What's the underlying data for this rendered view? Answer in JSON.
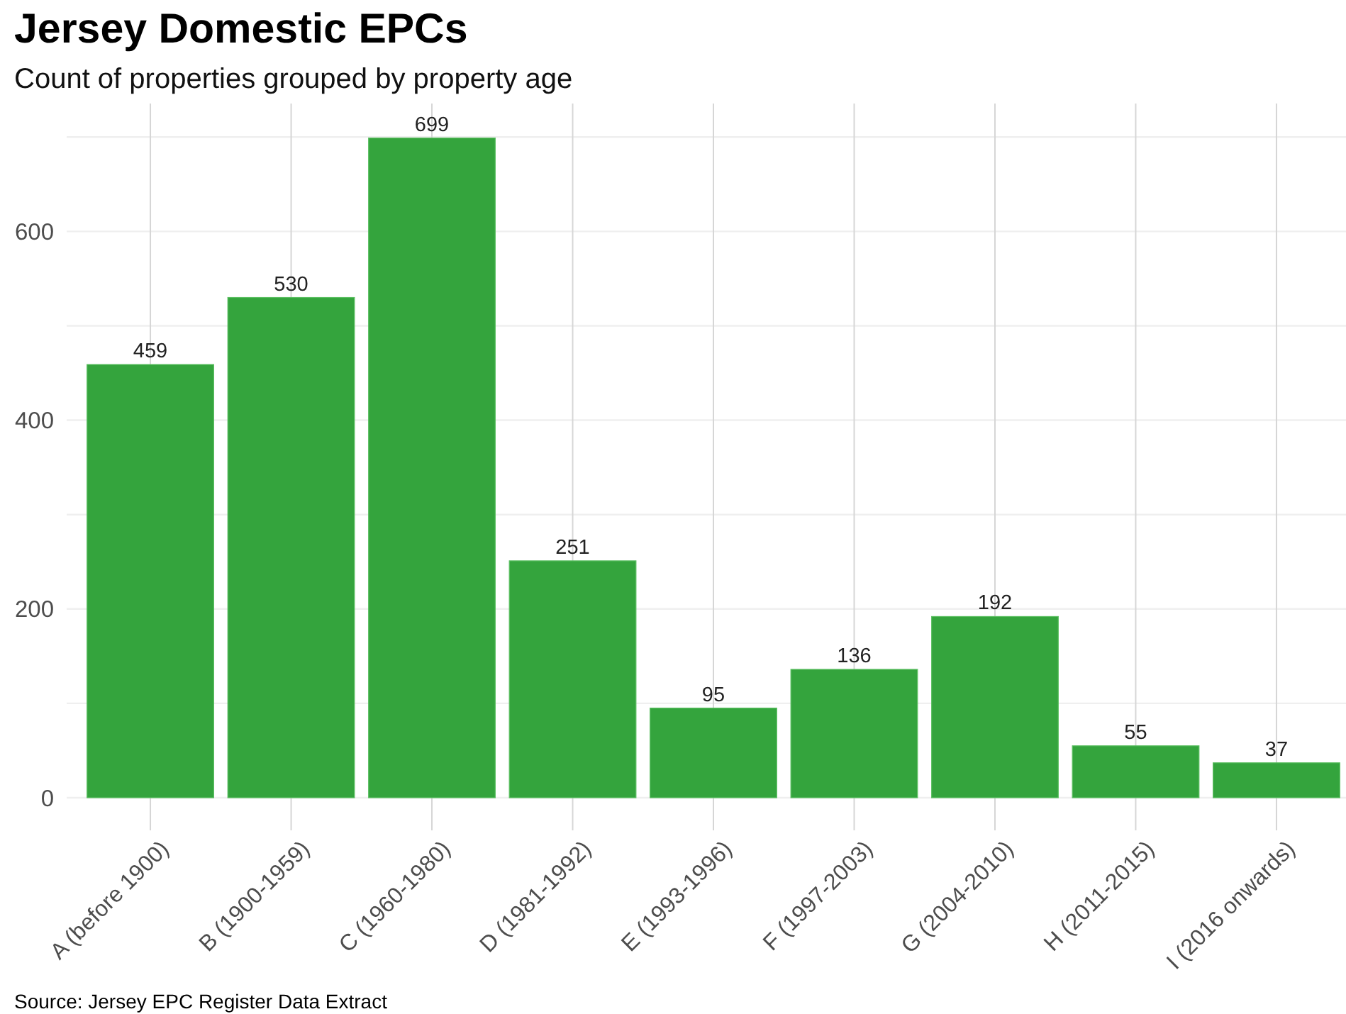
{
  "chart_data": {
    "type": "bar",
    "title": "Jersey Domestic EPCs",
    "subtitle": "Count of properties grouped by property age",
    "categories": [
      "A (before 1900)",
      "B (1900-1959)",
      "C (1960-1980)",
      "D (1981-1992)",
      "E (1993-1996)",
      "F (1997-2003)",
      "G (2004-2010)",
      "H (2011-2015)",
      "I (2016 onwards)"
    ],
    "values": [
      459,
      530,
      699,
      251,
      95,
      136,
      192,
      55,
      37
    ],
    "color": "#34a43d",
    "ylim": [
      0,
      734
    ],
    "yticks": [
      0,
      {
        "value": 100,
        "label": null
      },
      200,
      {
        "value": 300,
        "label": null
      },
      400,
      {
        "value": 500,
        "label": null
      },
      600,
      {
        "value": 700,
        "label": null
      }
    ],
    "grid": true,
    "data_labels": true,
    "annotations": [
      "Source: Jersey EPC Register Data Extract"
    ]
  }
}
